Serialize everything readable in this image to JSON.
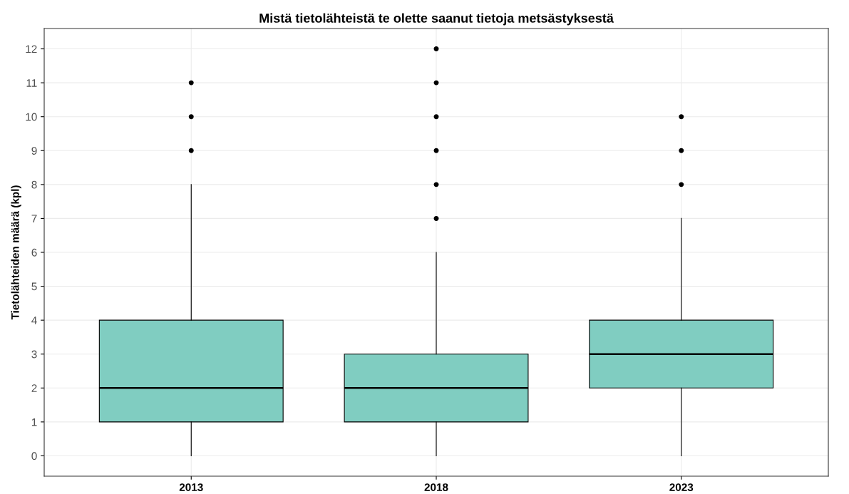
{
  "chart_data": {
    "type": "box",
    "title": "Mistä tietolähteistä te olette saanut tietoja metsästyksestä",
    "ylabel": "Tietolähteiden määrä (kpl)",
    "categories": [
      "2013",
      "2018",
      "2023"
    ],
    "boxes": [
      {
        "low": 0,
        "q1": 1,
        "median": 2,
        "q3": 4,
        "high": 8,
        "outliers": [
          9,
          10,
          11
        ]
      },
      {
        "low": 0,
        "q1": 1,
        "median": 2,
        "q3": 3,
        "high": 6,
        "outliers": [
          7,
          8,
          9,
          10,
          11,
          12
        ]
      },
      {
        "low": 0,
        "q1": 2,
        "median": 3,
        "q3": 4,
        "high": 7,
        "outliers": [
          8,
          9,
          10
        ]
      }
    ],
    "color": "#80cdc1",
    "ylim": [
      -0.6,
      12.6
    ],
    "yticks": [
      0,
      1,
      2,
      3,
      4,
      5,
      6,
      7,
      8,
      9,
      10,
      11,
      12
    ],
    "grid": true
  }
}
